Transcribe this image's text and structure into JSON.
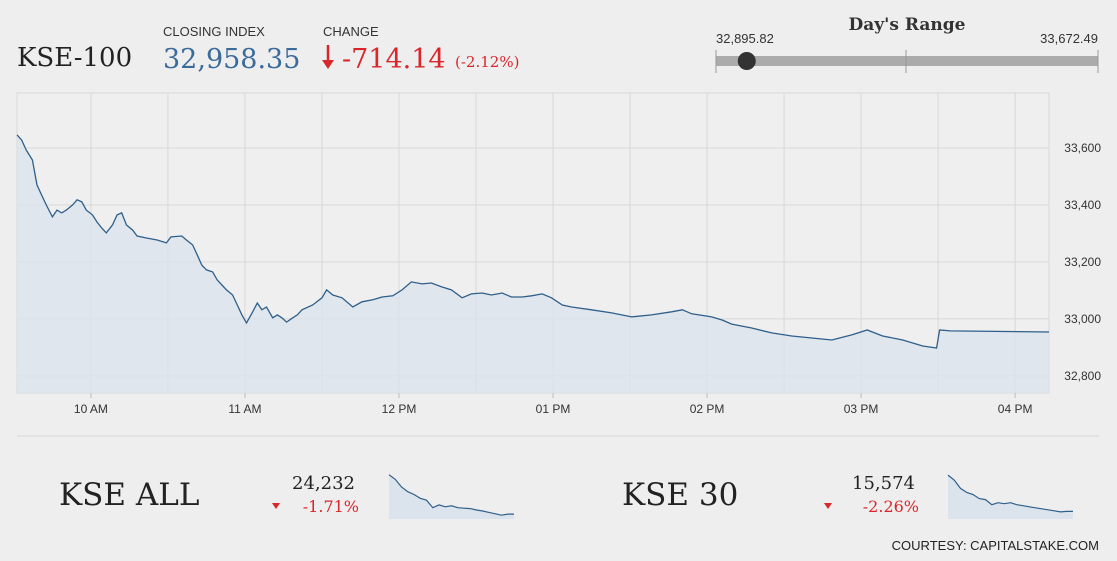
{
  "header": {
    "index_name": "KSE-100",
    "closing_label": "CLOSING INDEX",
    "closing_index": {
      "value": 32958.35,
      "label": "32,958.35"
    },
    "change_label": "CHANGE",
    "change": "-714.14",
    "change_pct": "(-2.12%)"
  },
  "day_range": {
    "title": "Day's Range",
    "low": {
      "value": 32895.82,
      "label": "32,895.82"
    },
    "high": {
      "value": 33672.49,
      "label": "33,672.49"
    }
  },
  "sub_indices": [
    {
      "value": "24,232",
      "change": "-1.71%"
    },
    {
      "value": "15,574",
      "change": "-2.26%"
    }
  ],
  "footer": "COURTESY: CAPITALSTAKE.COM",
  "chart_data": [
    {
      "type": "line",
      "color": "#2f5f8a",
      "fill": "#dbe3ec",
      "xlim": [
        9.52,
        16.22
      ],
      "ylim": [
        32740,
        33793
      ],
      "xticks": [
        {
          "value": 10,
          "label": "10 AM"
        },
        {
          "value": 11,
          "label": "11 AM"
        },
        {
          "value": 12,
          "label": "12 PM"
        },
        {
          "value": 13,
          "label": "01 PM"
        },
        {
          "value": 14,
          "label": "02 PM"
        },
        {
          "value": 15,
          "label": "03 PM"
        },
        {
          "value": 16,
          "label": "04 PM"
        }
      ],
      "x_minor_ticks": [
        10.5,
        11.5,
        12.5,
        13.5,
        14.5,
        15.5
      ],
      "yticks": [
        {
          "value": 32800,
          "label": "32,800"
        },
        {
          "value": 33000,
          "label": "33,000"
        },
        {
          "value": 33200,
          "label": "33,200"
        },
        {
          "value": 33400,
          "label": "33,400"
        },
        {
          "value": 33600,
          "label": "33,600"
        }
      ],
      "grid": true,
      "x": [
        9.52,
        9.55,
        9.58,
        9.62,
        9.65,
        9.68,
        9.71,
        9.75,
        9.78,
        9.81,
        9.84,
        9.88,
        9.91,
        9.94,
        9.97,
        10.01,
        10.04,
        10.07,
        10.1,
        10.14,
        10.17,
        10.2,
        10.23,
        10.27,
        10.3,
        10.36,
        10.43,
        10.49,
        10.52,
        10.59,
        10.62,
        10.66,
        10.69,
        10.72,
        10.75,
        10.79,
        10.82,
        10.85,
        10.88,
        10.92,
        10.95,
        10.98,
        11.01,
        11.05,
        11.08,
        11.11,
        11.14,
        11.18,
        11.21,
        11.24,
        11.27,
        11.31,
        11.34,
        11.37,
        11.44,
        11.5,
        11.53,
        11.57,
        11.63,
        11.7,
        11.76,
        11.83,
        11.89,
        11.96,
        12.02,
        12.08,
        12.15,
        12.21,
        12.28,
        12.34,
        12.41,
        12.47,
        12.54,
        12.6,
        12.67,
        12.73,
        12.8,
        12.86,
        12.93,
        12.99,
        13.06,
        13.12,
        13.25,
        13.38,
        13.51,
        13.64,
        13.77,
        13.84,
        13.9,
        14.03,
        14.1,
        14.16,
        14.29,
        14.42,
        14.55,
        14.68,
        14.81,
        14.94,
        15.04,
        15.14,
        15.27,
        15.4,
        15.49,
        15.51,
        15.58,
        16.22
      ],
      "values": [
        33646,
        33628,
        33593,
        33558,
        33470,
        33435,
        33400,
        33358,
        33382,
        33372,
        33382,
        33400,
        33418,
        33411,
        33382,
        33365,
        33340,
        33319,
        33302,
        33330,
        33365,
        33372,
        33330,
        33312,
        33291,
        33284,
        33277,
        33267,
        33288,
        33291,
        33277,
        33260,
        33225,
        33189,
        33172,
        33165,
        33137,
        33119,
        33102,
        33084,
        33049,
        33014,
        32986,
        33025,
        33056,
        33032,
        33042,
        33004,
        33014,
        33004,
        32989,
        33004,
        33014,
        33032,
        33049,
        33074,
        33102,
        33084,
        33074,
        33042,
        33060,
        33067,
        33077,
        33081,
        33102,
        33130,
        33123,
        33126,
        33112,
        33102,
        33074,
        33088,
        33091,
        33084,
        33091,
        33077,
        33077,
        33081,
        33088,
        33074,
        33049,
        33042,
        33032,
        33021,
        33007,
        33014,
        33025,
        33032,
        33018,
        33007,
        32996,
        32982,
        32968,
        32951,
        32940,
        32933,
        32926,
        32944,
        32961,
        32940,
        32926,
        32905,
        32898,
        32961,
        32958,
        32954
      ]
    },
    {
      "type": "sparkline",
      "title": "KSE ALL",
      "color": "#2f5f8a",
      "fill": "#dbe3ec",
      "ylim": [
        24180,
        24700
      ],
      "values": [
        24650,
        24600,
        24520,
        24470,
        24440,
        24400,
        24380,
        24300,
        24330,
        24310,
        24320,
        24300,
        24295,
        24290,
        24275,
        24265,
        24250,
        24235,
        24220,
        24232,
        24232
      ]
    },
    {
      "type": "sparkline",
      "title": "KSE 30",
      "color": "#2f5f8a",
      "fill": "#dbe3ec",
      "ylim": [
        15500,
        15980
      ],
      "values": [
        15930,
        15880,
        15800,
        15760,
        15740,
        15700,
        15690,
        15640,
        15660,
        15650,
        15660,
        15640,
        15630,
        15620,
        15610,
        15600,
        15590,
        15580,
        15570,
        15574,
        15574
      ]
    }
  ]
}
